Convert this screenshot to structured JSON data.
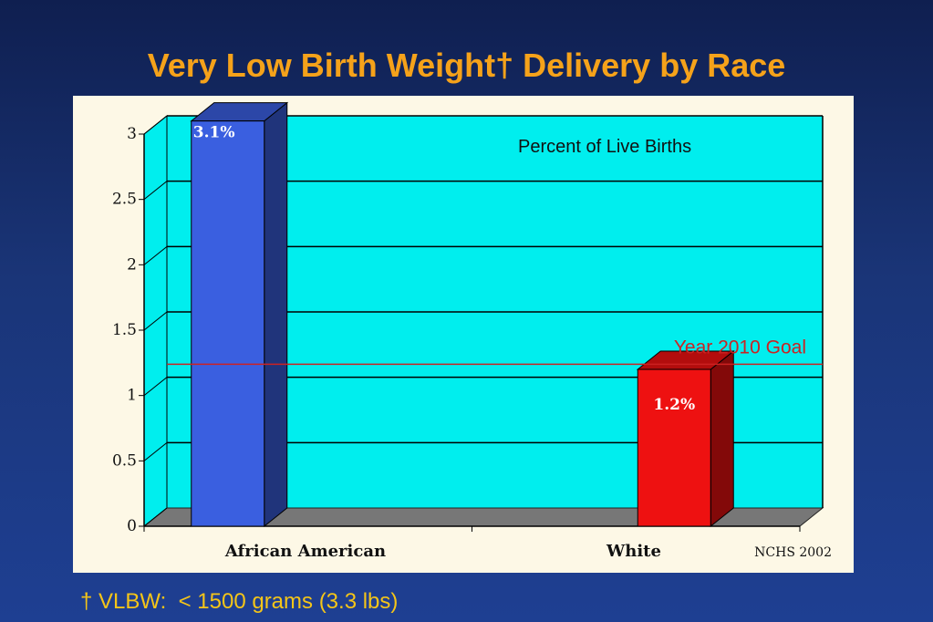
{
  "slide": {
    "title": "Very Low Birth Weight† Delivery by Race",
    "footnote": "† VLBW:  < 1500 grams (3.3 lbs)"
  },
  "chart_data": {
    "type": "bar",
    "categories": [
      "African American",
      "White"
    ],
    "values": [
      3.1,
      1.2
    ],
    "data_labels": [
      "3.1%",
      "1.2%"
    ],
    "bar_colors": [
      "#3a5fe0",
      "#ee1111"
    ],
    "title": "",
    "annotation": "Percent of Live Births",
    "source": "NCHS 2002",
    "goal_line": {
      "value": 1.1,
      "label": "Year 2010 Goal",
      "color": "#cc2222"
    },
    "y_ticks": [
      "0",
      "0.5",
      "1",
      "1.5",
      "2",
      "2.5",
      "3"
    ],
    "ylim": [
      0,
      3
    ],
    "grid": true,
    "background_color": "#00eeee",
    "floor_color": "#777777"
  }
}
